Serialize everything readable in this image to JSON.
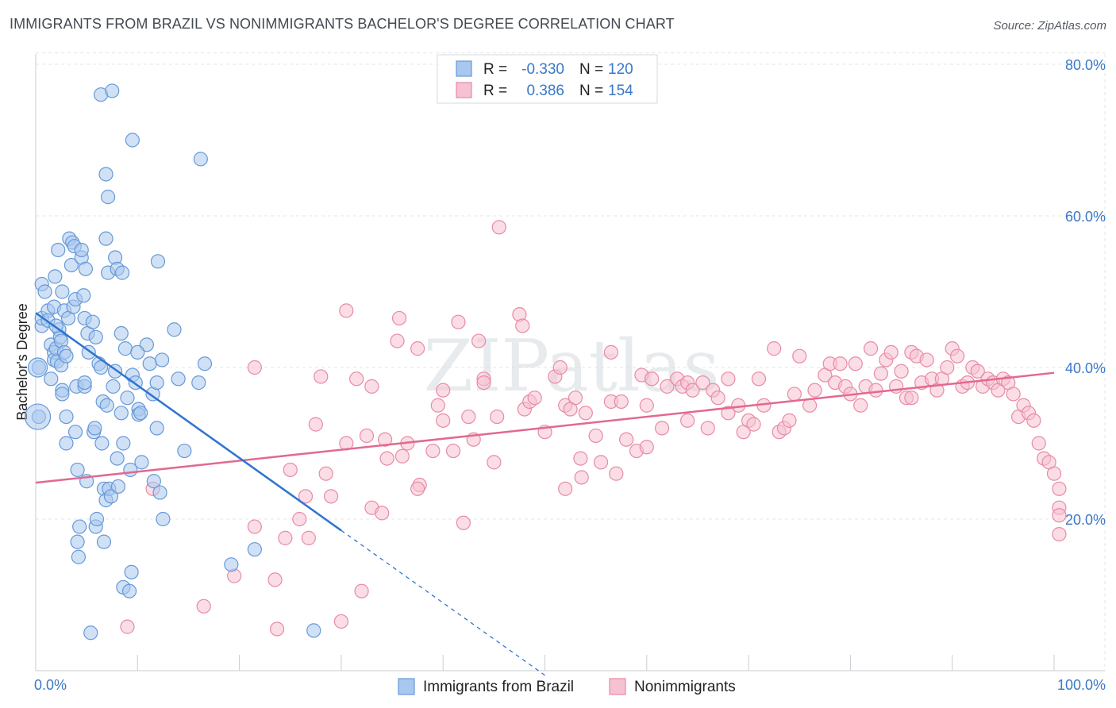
{
  "header": {
    "title": "IMMIGRANTS FROM BRAZIL VS NONIMMIGRANTS BACHELOR'S DEGREE CORRELATION CHART",
    "source": "Source: ZipAtlas.com"
  },
  "colors": {
    "blue_fill": "#a9c8ef",
    "blue_stroke": "#6699d9",
    "blue_line": "#2f74d0",
    "pink_fill": "#f6c1d0",
    "pink_stroke": "#e88aa8",
    "pink_line": "#e2698f",
    "axis_label": "#3a78c9",
    "grid": "#e3e6ea"
  },
  "chart_data": {
    "type": "scatter",
    "xlabel": "",
    "ylabel": "Bachelor's Degree",
    "xlim": [
      0,
      100
    ],
    "ylim": [
      0,
      84
    ],
    "x_tick_labels": [
      "0.0%",
      "100.0%"
    ],
    "y_tick_labels": [
      "20.0%",
      "40.0%",
      "60.0%",
      "80.0%"
    ],
    "y_ticks": [
      20,
      40,
      60,
      80
    ],
    "watermark": "ZIPatlas",
    "legend": {
      "stats": [
        {
          "r_label": "R =",
          "r_value": "-0.330",
          "n_label": "N =",
          "n_value": "120"
        },
        {
          "r_label": "R =",
          "r_value": "0.386",
          "n_label": "N =",
          "n_value": "154"
        }
      ],
      "bottom": [
        "Immigrants from Brazil",
        "Nonimmigrants"
      ]
    },
    "series": [
      {
        "name": "Immigrants from Brazil",
        "trend": {
          "x0": 0,
          "y0": 47.2,
          "x1": 30,
          "y1": 18.5,
          "dash_to_x": 50,
          "dash_to_y": -0.6
        },
        "points": [
          [
            0.3,
            40
          ],
          [
            0.3,
            33.5
          ],
          [
            0.6,
            45.5
          ],
          [
            0.6,
            46.5
          ],
          [
            0.6,
            51
          ],
          [
            0.9,
            50
          ],
          [
            1.2,
            47.5
          ],
          [
            1.2,
            46.2
          ],
          [
            1.5,
            43
          ],
          [
            1.8,
            48
          ],
          [
            1.8,
            42
          ],
          [
            1.8,
            41
          ],
          [
            1.9,
            52
          ],
          [
            2,
            42.5
          ],
          [
            2.1,
            40.8
          ],
          [
            2.2,
            55.5
          ],
          [
            2.3,
            45
          ],
          [
            2.4,
            44
          ],
          [
            2.5,
            43.5
          ],
          [
            2.5,
            40.3
          ],
          [
            2.6,
            37
          ],
          [
            2.6,
            36.5
          ],
          [
            2.6,
            50
          ],
          [
            2.8,
            47.5
          ],
          [
            2.8,
            42
          ],
          [
            3,
            33.5
          ],
          [
            3,
            30
          ],
          [
            3.2,
            46.5
          ],
          [
            3.3,
            57
          ],
          [
            3.5,
            53.5
          ],
          [
            3.6,
            56.5
          ],
          [
            3.7,
            48
          ],
          [
            3.8,
            56
          ],
          [
            3.9,
            49
          ],
          [
            3.9,
            31.5
          ],
          [
            4,
            37.5
          ],
          [
            4.1,
            26.5
          ],
          [
            4.1,
            17
          ],
          [
            4.2,
            15
          ],
          [
            4.3,
            19
          ],
          [
            4.5,
            54.5
          ],
          [
            4.5,
            55.5
          ],
          [
            4.7,
            49.5
          ],
          [
            4.8,
            46.5
          ],
          [
            4.8,
            37.5
          ],
          [
            4.9,
            53
          ],
          [
            5.1,
            44.5
          ],
          [
            5.2,
            42
          ],
          [
            5.4,
            5
          ],
          [
            5.6,
            46
          ],
          [
            5.7,
            31.5
          ],
          [
            5.8,
            32
          ],
          [
            5.9,
            19
          ],
          [
            5.9,
            44
          ],
          [
            6,
            20
          ],
          [
            6.2,
            40.5
          ],
          [
            6.4,
            76
          ],
          [
            6.4,
            40
          ],
          [
            6.6,
            35.5
          ],
          [
            6.7,
            24
          ],
          [
            6.7,
            17
          ],
          [
            6.9,
            65.5
          ],
          [
            6.9,
            57
          ],
          [
            6.9,
            22.5
          ],
          [
            7.1,
            52.5
          ],
          [
            7.1,
            62.5
          ],
          [
            7.2,
            24
          ],
          [
            7.4,
            23
          ],
          [
            7.5,
            76.5
          ],
          [
            7.6,
            37.5
          ],
          [
            7.8,
            54.5
          ],
          [
            7.8,
            39.5
          ],
          [
            8,
            53
          ],
          [
            8.1,
            24.3
          ],
          [
            8.4,
            44.5
          ],
          [
            8.4,
            34
          ],
          [
            8.5,
            52.5
          ],
          [
            8.6,
            30
          ],
          [
            8.6,
            11
          ],
          [
            8.8,
            42.5
          ],
          [
            9,
            36
          ],
          [
            9.2,
            10.5
          ],
          [
            9.3,
            26.5
          ],
          [
            9.4,
            13
          ],
          [
            9.5,
            70
          ],
          [
            9.5,
            39
          ],
          [
            9.8,
            38
          ],
          [
            10.1,
            34.5
          ],
          [
            10.1,
            33.8
          ],
          [
            10.3,
            34
          ],
          [
            10.4,
            27.5
          ],
          [
            10.9,
            43
          ],
          [
            11.2,
            40.5
          ],
          [
            11.5,
            36.5
          ],
          [
            11.6,
            25
          ],
          [
            11.9,
            38
          ],
          [
            11.9,
            32
          ],
          [
            12,
            54
          ],
          [
            12.2,
            23.5
          ],
          [
            12.4,
            41
          ],
          [
            13.6,
            45
          ],
          [
            14,
            38.5
          ],
          [
            14.6,
            29
          ],
          [
            16,
            38
          ],
          [
            16.2,
            67.5
          ],
          [
            16.6,
            40.5
          ],
          [
            19.2,
            14
          ],
          [
            21.5,
            16
          ],
          [
            27.3,
            5.3
          ],
          [
            3,
            41.5
          ],
          [
            4.8,
            38
          ],
          [
            1.5,
            38.5
          ],
          [
            2,
            45.5
          ],
          [
            6.5,
            30
          ],
          [
            7,
            35
          ],
          [
            10,
            42
          ],
          [
            12.5,
            20
          ],
          [
            5,
            25
          ],
          [
            8,
            28
          ]
        ]
      },
      {
        "name": "Nonimmigrants",
        "trend": {
          "x0": 0,
          "y0": 24.8,
          "x1": 100,
          "y1": 39.3
        },
        "points": [
          [
            9,
            5.8
          ],
          [
            11.5,
            24
          ],
          [
            16.5,
            8.5
          ],
          [
            19.5,
            12.5
          ],
          [
            21.5,
            40
          ],
          [
            21.5,
            19
          ],
          [
            23.5,
            12
          ],
          [
            23.7,
            5.5
          ],
          [
            24.5,
            17.5
          ],
          [
            25,
            26.5
          ],
          [
            25.9,
            20
          ],
          [
            26.5,
            23
          ],
          [
            26.8,
            17.5
          ],
          [
            27.5,
            32.5
          ],
          [
            28,
            38.8
          ],
          [
            28.5,
            26
          ],
          [
            29,
            23
          ],
          [
            30,
            6.5
          ],
          [
            30.5,
            47.5
          ],
          [
            30.5,
            30
          ],
          [
            31.5,
            38.5
          ],
          [
            32,
            10.5
          ],
          [
            32.5,
            31
          ],
          [
            33,
            37.5
          ],
          [
            33,
            21.5
          ],
          [
            34,
            20.8
          ],
          [
            34.3,
            30.5
          ],
          [
            34.5,
            28
          ],
          [
            35.5,
            43.5
          ],
          [
            35.7,
            46.5
          ],
          [
            36,
            28.3
          ],
          [
            36.5,
            30
          ],
          [
            37.5,
            42.5
          ],
          [
            37.7,
            24.5
          ],
          [
            39,
            29
          ],
          [
            39.5,
            35
          ],
          [
            40,
            37
          ],
          [
            41,
            29
          ],
          [
            41.5,
            46
          ],
          [
            42,
            19.5
          ],
          [
            42.5,
            33.5
          ],
          [
            43,
            30.5
          ],
          [
            43.5,
            43.5
          ],
          [
            44,
            38.5
          ],
          [
            45,
            27.5
          ],
          [
            45.3,
            33.5
          ],
          [
            45.5,
            58.5
          ],
          [
            47.5,
            47
          ],
          [
            47.8,
            45.5
          ],
          [
            48,
            34.5
          ],
          [
            48.5,
            35.5
          ],
          [
            49,
            36
          ],
          [
            50,
            31.5
          ],
          [
            51,
            38.8
          ],
          [
            51.5,
            40
          ],
          [
            52,
            35
          ],
          [
            52.5,
            34.5
          ],
          [
            53,
            36
          ],
          [
            53.5,
            28
          ],
          [
            53.6,
            25.5
          ],
          [
            54,
            34
          ],
          [
            55,
            31
          ],
          [
            55.5,
            27.5
          ],
          [
            56.5,
            35.5
          ],
          [
            56.5,
            42
          ],
          [
            57,
            26
          ],
          [
            57.5,
            35.5
          ],
          [
            58,
            30.5
          ],
          [
            59,
            29
          ],
          [
            59.5,
            39
          ],
          [
            60,
            29.5
          ],
          [
            60.5,
            38.5
          ],
          [
            61.5,
            32
          ],
          [
            62,
            37.5
          ],
          [
            63,
            38.5
          ],
          [
            63.5,
            37.5
          ],
          [
            64,
            38
          ],
          [
            64.5,
            37
          ],
          [
            65.5,
            38
          ],
          [
            66,
            32
          ],
          [
            66.5,
            37
          ],
          [
            67,
            36
          ],
          [
            68,
            38.5
          ],
          [
            68,
            34
          ],
          [
            69,
            35
          ],
          [
            69.5,
            31.5
          ],
          [
            70,
            33
          ],
          [
            70.5,
            32.5
          ],
          [
            71,
            38.5
          ],
          [
            71.5,
            35
          ],
          [
            72.5,
            42.5
          ],
          [
            73,
            31.5
          ],
          [
            73.5,
            32
          ],
          [
            74.5,
            36.5
          ],
          [
            75,
            41.5
          ],
          [
            76,
            35
          ],
          [
            76.5,
            37
          ],
          [
            77.5,
            39
          ],
          [
            78,
            40.5
          ],
          [
            78.5,
            38
          ],
          [
            79,
            40.5
          ],
          [
            79.5,
            37.5
          ],
          [
            80,
            36.5
          ],
          [
            80.5,
            40.5
          ],
          [
            81,
            35
          ],
          [
            81.5,
            37.5
          ],
          [
            82,
            42.5
          ],
          [
            82.5,
            37
          ],
          [
            83,
            39.2
          ],
          [
            83.5,
            41
          ],
          [
            84,
            42
          ],
          [
            84.5,
            37.5
          ],
          [
            85,
            39.5
          ],
          [
            85.5,
            36
          ],
          [
            86,
            42
          ],
          [
            86.5,
            41.5
          ],
          [
            87,
            38
          ],
          [
            87.5,
            41
          ],
          [
            88,
            38.5
          ],
          [
            88.5,
            37
          ],
          [
            89,
            38.5
          ],
          [
            89.5,
            40
          ],
          [
            90,
            42.5
          ],
          [
            90.5,
            41.5
          ],
          [
            91,
            37.5
          ],
          [
            91.5,
            38
          ],
          [
            92,
            40
          ],
          [
            92.5,
            39.5
          ],
          [
            93,
            37.5
          ],
          [
            93.5,
            38.5
          ],
          [
            94,
            38
          ],
          [
            94.5,
            37
          ],
          [
            95,
            38.5
          ],
          [
            95.5,
            38
          ],
          [
            96,
            36.5
          ],
          [
            96.5,
            33.5
          ],
          [
            97,
            35
          ],
          [
            97.5,
            34
          ],
          [
            98,
            33
          ],
          [
            98.5,
            30
          ],
          [
            99,
            28
          ],
          [
            99.5,
            27.5
          ],
          [
            100,
            26
          ],
          [
            100.5,
            24
          ],
          [
            101,
            21.5
          ],
          [
            101.5,
            20.5
          ],
          [
            101.7,
            18
          ],
          [
            37.5,
            24
          ],
          [
            40,
            33
          ],
          [
            52,
            24
          ],
          [
            44,
            38
          ],
          [
            60,
            35
          ],
          [
            74,
            33
          ],
          [
            86,
            36
          ],
          [
            64,
            33
          ]
        ]
      }
    ]
  }
}
